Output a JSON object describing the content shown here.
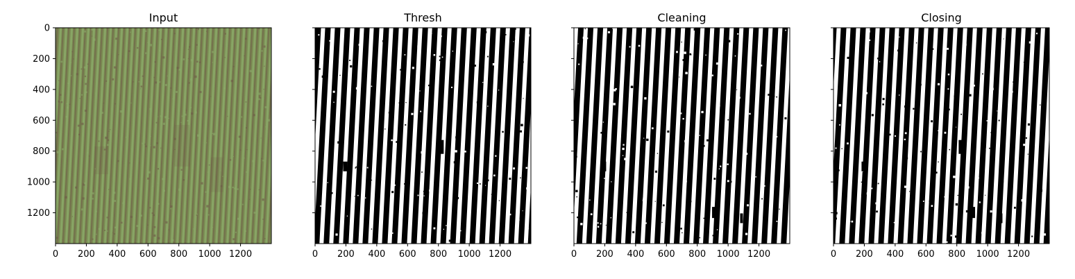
{
  "chart_data": [
    {
      "type": "image",
      "title": "Input",
      "content": "color",
      "colors": {
        "base": "#7a8a52",
        "row_dark": "#6e5a48",
        "row_light": "#8cab6a"
      },
      "xlim": [
        0,
        1400
      ],
      "ylim": [
        1400,
        0
      ],
      "xticks": [
        "0",
        "200",
        "400",
        "600",
        "800",
        "1000",
        "1200"
      ],
      "yticks": [
        "0",
        "200",
        "400",
        "600",
        "800",
        "1000",
        "1200"
      ],
      "show_ytick_labels": true
    },
    {
      "type": "image",
      "title": "Thresh",
      "content": "binary",
      "colors": {
        "fg": "#ffffff",
        "bg": "#000000"
      },
      "xlim": [
        0,
        1400
      ],
      "ylim": [
        1400,
        0
      ],
      "xticks": [
        "0",
        "200",
        "400",
        "600",
        "800",
        "1000",
        "1200"
      ],
      "yticks": [
        "0",
        "200",
        "400",
        "600",
        "800",
        "1000",
        "1200"
      ],
      "show_ytick_labels": false
    },
    {
      "type": "image",
      "title": "Cleaning",
      "content": "binary",
      "colors": {
        "fg": "#ffffff",
        "bg": "#000000"
      },
      "xlim": [
        0,
        1400
      ],
      "ylim": [
        1400,
        0
      ],
      "xticks": [
        "0",
        "200",
        "400",
        "600",
        "800",
        "1000",
        "1200"
      ],
      "yticks": [
        "0",
        "200",
        "400",
        "600",
        "800",
        "1000",
        "1200"
      ],
      "show_ytick_labels": false
    },
    {
      "type": "image",
      "title": "Closing",
      "content": "binary",
      "colors": {
        "fg": "#ffffff",
        "bg": "#000000"
      },
      "xlim": [
        0,
        1400
      ],
      "ylim": [
        1400,
        0
      ],
      "xticks": [
        "0",
        "200",
        "400",
        "600",
        "800",
        "1000",
        "1200"
      ],
      "yticks": [
        "0",
        "200",
        "400",
        "600",
        "800",
        "1000",
        "1200"
      ],
      "show_ytick_labels": false
    }
  ]
}
